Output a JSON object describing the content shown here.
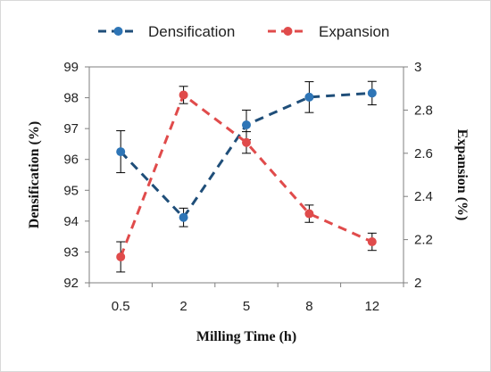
{
  "chart_data": {
    "type": "line",
    "categories": [
      "0.5",
      "2",
      "5",
      "8",
      "12"
    ],
    "xlabel": "Milling Time (h)",
    "ylabel": "Densification (%)",
    "y2label": "Expansion (%)",
    "ylim": [
      92,
      99
    ],
    "y2lim": [
      2,
      3
    ],
    "yticks": [
      "92",
      "93",
      "94",
      "95",
      "96",
      "97",
      "98",
      "99"
    ],
    "y2ticks": [
      "2",
      "2.2",
      "2.4",
      "2.6",
      "2.8",
      "3"
    ],
    "grid": false,
    "legend_position": "top",
    "series": [
      {
        "name": "Densification",
        "axis": "left",
        "color": "#1f4e79",
        "values": [
          96.25,
          94.12,
          97.12,
          98.02,
          98.15
        ],
        "error": [
          0.68,
          0.3,
          0.48,
          0.5,
          0.38
        ]
      },
      {
        "name": "Expansion",
        "axis": "right",
        "color": "#e04b4b",
        "values": [
          2.12,
          2.87,
          2.65,
          2.32,
          2.19
        ],
        "error": [
          0.07,
          0.04,
          0.05,
          0.04,
          0.04
        ]
      }
    ]
  }
}
